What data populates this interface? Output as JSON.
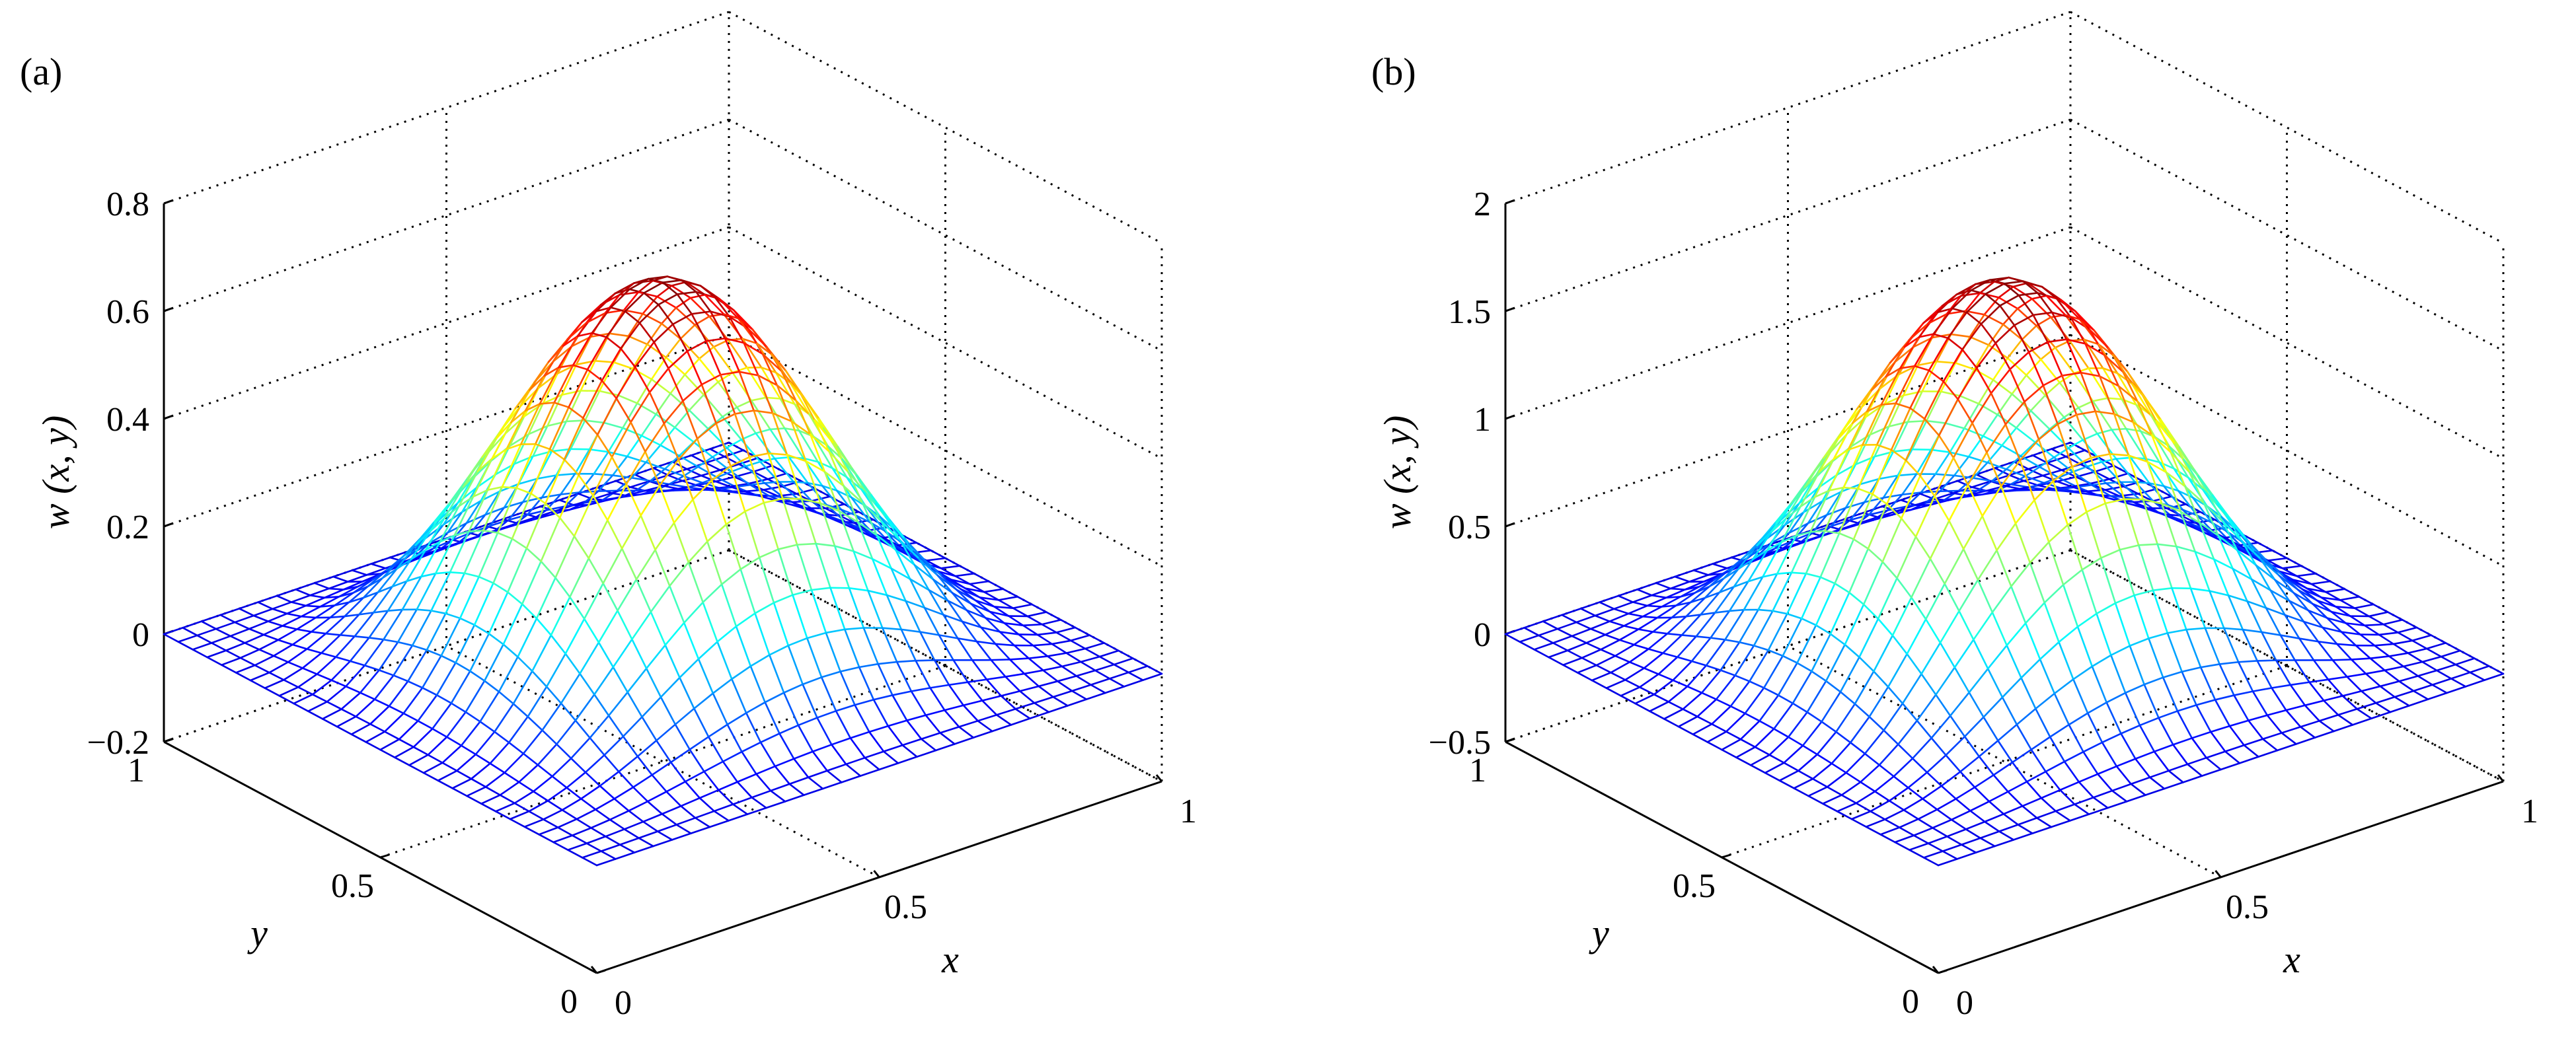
{
  "chart_data": [
    {
      "type": "surface",
      "panel_label": "(a)",
      "xlabel": "x",
      "ylabel": "y",
      "zlabel": "w (x, y)",
      "xlim": [
        0,
        1
      ],
      "ylim": [
        0,
        1
      ],
      "zlim": [
        -0.2,
        0.8
      ],
      "xticks": [
        "0",
        "0.5",
        "1"
      ],
      "yticks": [
        "0",
        "0.5",
        "1"
      ],
      "zticks": [
        "−0.2",
        "0",
        "0.2",
        "0.4",
        "0.6",
        "0.8"
      ],
      "zticks_values": [
        -0.2,
        0,
        0.2,
        0.4,
        0.6,
        0.8
      ],
      "grid": true,
      "surface": {
        "function": "peak * sin^2(pi x) * sin^2(pi y)",
        "peak": 0.69,
        "grid_lines": 31,
        "colormap": "jet"
      }
    },
    {
      "type": "surface",
      "panel_label": "(b)",
      "xlabel": "x",
      "ylabel": "y",
      "zlabel": "w (x, y)",
      "xlim": [
        0,
        1
      ],
      "ylim": [
        0,
        1
      ],
      "zlim": [
        -0.5,
        2
      ],
      "xticks": [
        "0",
        "0.5",
        "1"
      ],
      "yticks": [
        "0",
        "0.5",
        "1"
      ],
      "zticks": [
        "−0.5",
        "0",
        "0.5",
        "1",
        "1.5",
        "2"
      ],
      "zticks_values": [
        -0.5,
        0,
        0.5,
        1,
        1.5,
        2
      ],
      "grid": true,
      "surface": {
        "function": "peak * sin^2(pi x) * sin^2(pi y)",
        "peak": 1.72,
        "grid_lines": 31,
        "colormap": "jet"
      }
    }
  ]
}
